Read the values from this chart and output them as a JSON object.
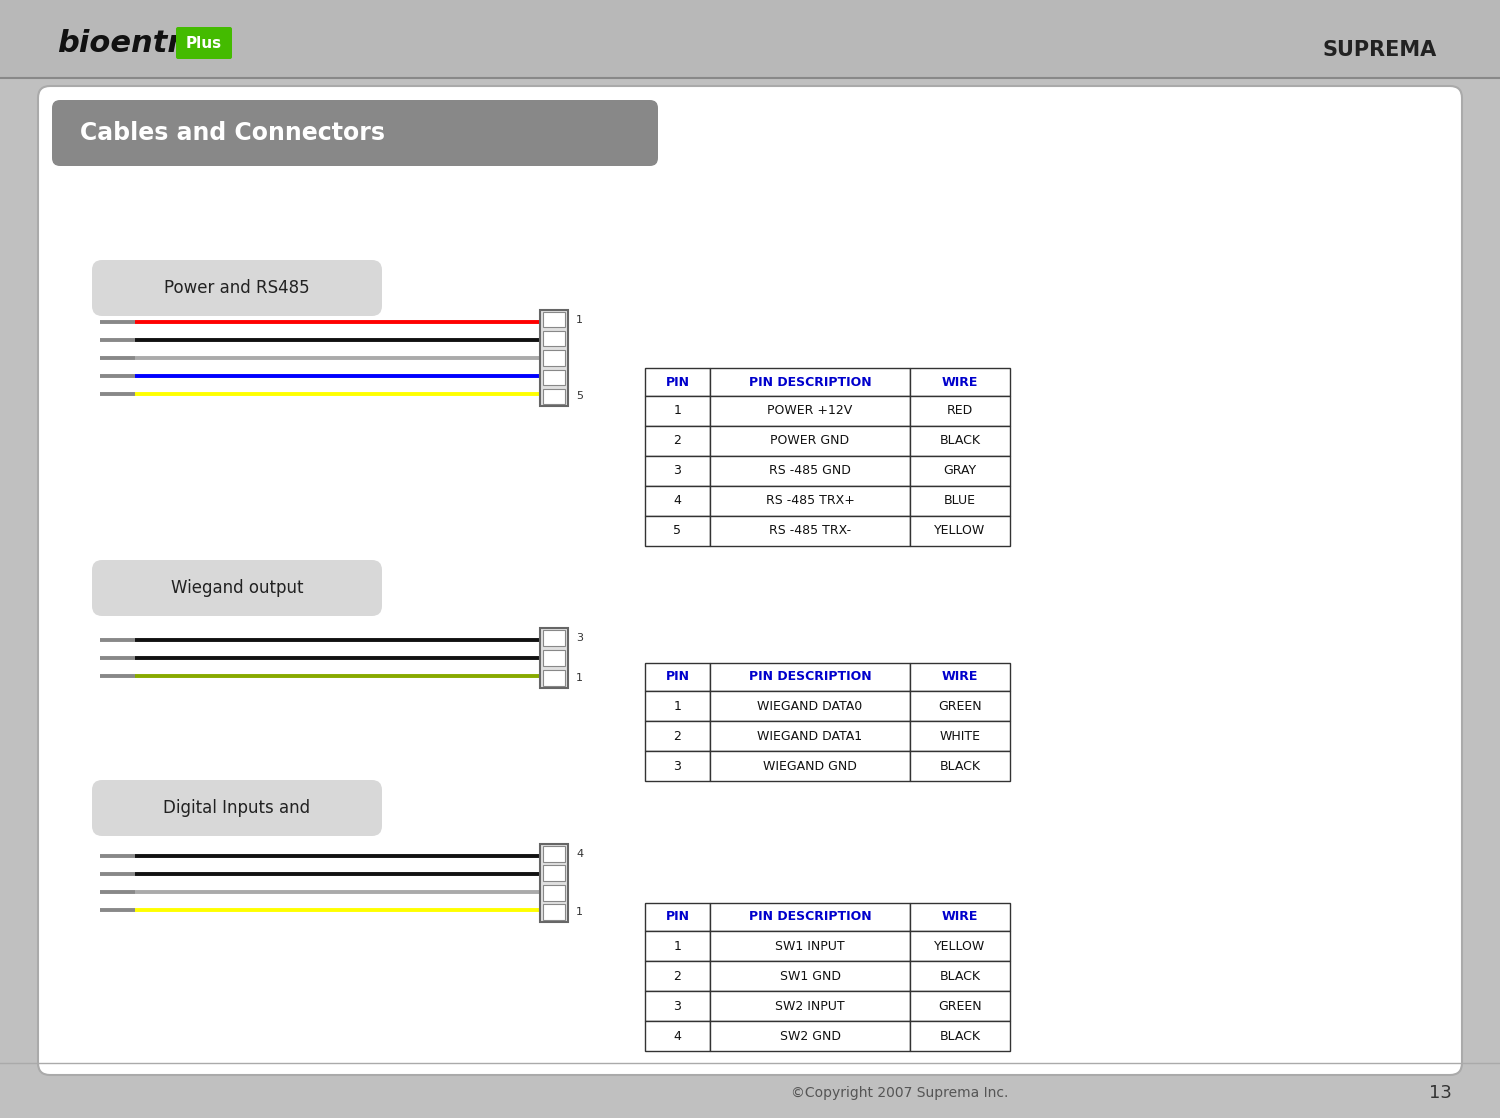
{
  "bg_color": "#c0c0c0",
  "inner_bg": "#ffffff",
  "title": "Cables and Connectors",
  "title_color": "#ffffff",
  "title_bg": "#888888",
  "page_number": "13",
  "copyright": "©Copyright 2007 Suprema Inc.",
  "table_header_color": "#0000cc",
  "table_border_color": "#333333",
  "sections": [
    {
      "label": "Power and RS485",
      "wires": [
        {
          "color": "#ff0000"
        },
        {
          "color": "#111111"
        },
        {
          "color": "#aaaaaa"
        },
        {
          "color": "#0000ff"
        },
        {
          "color": "#ffff00"
        }
      ],
      "connector_pins": 5,
      "pin1_top": true,
      "table": {
        "headers": [
          "PIN",
          "PIN DESCRIPTION",
          "WIRE"
        ],
        "rows": [
          [
            "1",
            "POWER +12V",
            "RED"
          ],
          [
            "2",
            "POWER GND",
            "BLACK"
          ],
          [
            "3",
            "RS -485 GND",
            "GRAY"
          ],
          [
            "4",
            "RS -485 TRX+",
            "BLUE"
          ],
          [
            "5",
            "RS -485 TRX-",
            "YELLOW"
          ]
        ]
      }
    },
    {
      "label": "Wiegand output",
      "wires": [
        {
          "color": "#111111"
        },
        {
          "color": "#111111"
        },
        {
          "color": "#88aa00"
        }
      ],
      "connector_pins": 3,
      "pin1_top": false,
      "table": {
        "headers": [
          "PIN",
          "PIN DESCRIPTION",
          "WIRE"
        ],
        "rows": [
          [
            "1",
            "WIEGAND DATA0",
            "GREEN"
          ],
          [
            "2",
            "WIEGAND DATA1",
            "WHITE"
          ],
          [
            "3",
            "WIEGAND GND",
            "BLACK"
          ]
        ]
      }
    },
    {
      "label": "Digital Inputs and",
      "wires": [
        {
          "color": "#111111"
        },
        {
          "color": "#111111"
        },
        {
          "color": "#aaaaaa"
        },
        {
          "color": "#ffff00"
        }
      ],
      "connector_pins": 4,
      "pin1_top": false,
      "table": {
        "headers": [
          "PIN",
          "PIN DESCRIPTION",
          "WIRE"
        ],
        "rows": [
          [
            "1",
            "SW1 INPUT",
            "YELLOW"
          ],
          [
            "2",
            "SW1 GND",
            "BLACK"
          ],
          [
            "3",
            "SW2 INPUT",
            "GREEN"
          ],
          [
            "4",
            "SW2 GND",
            "BLACK"
          ]
        ]
      }
    }
  ]
}
